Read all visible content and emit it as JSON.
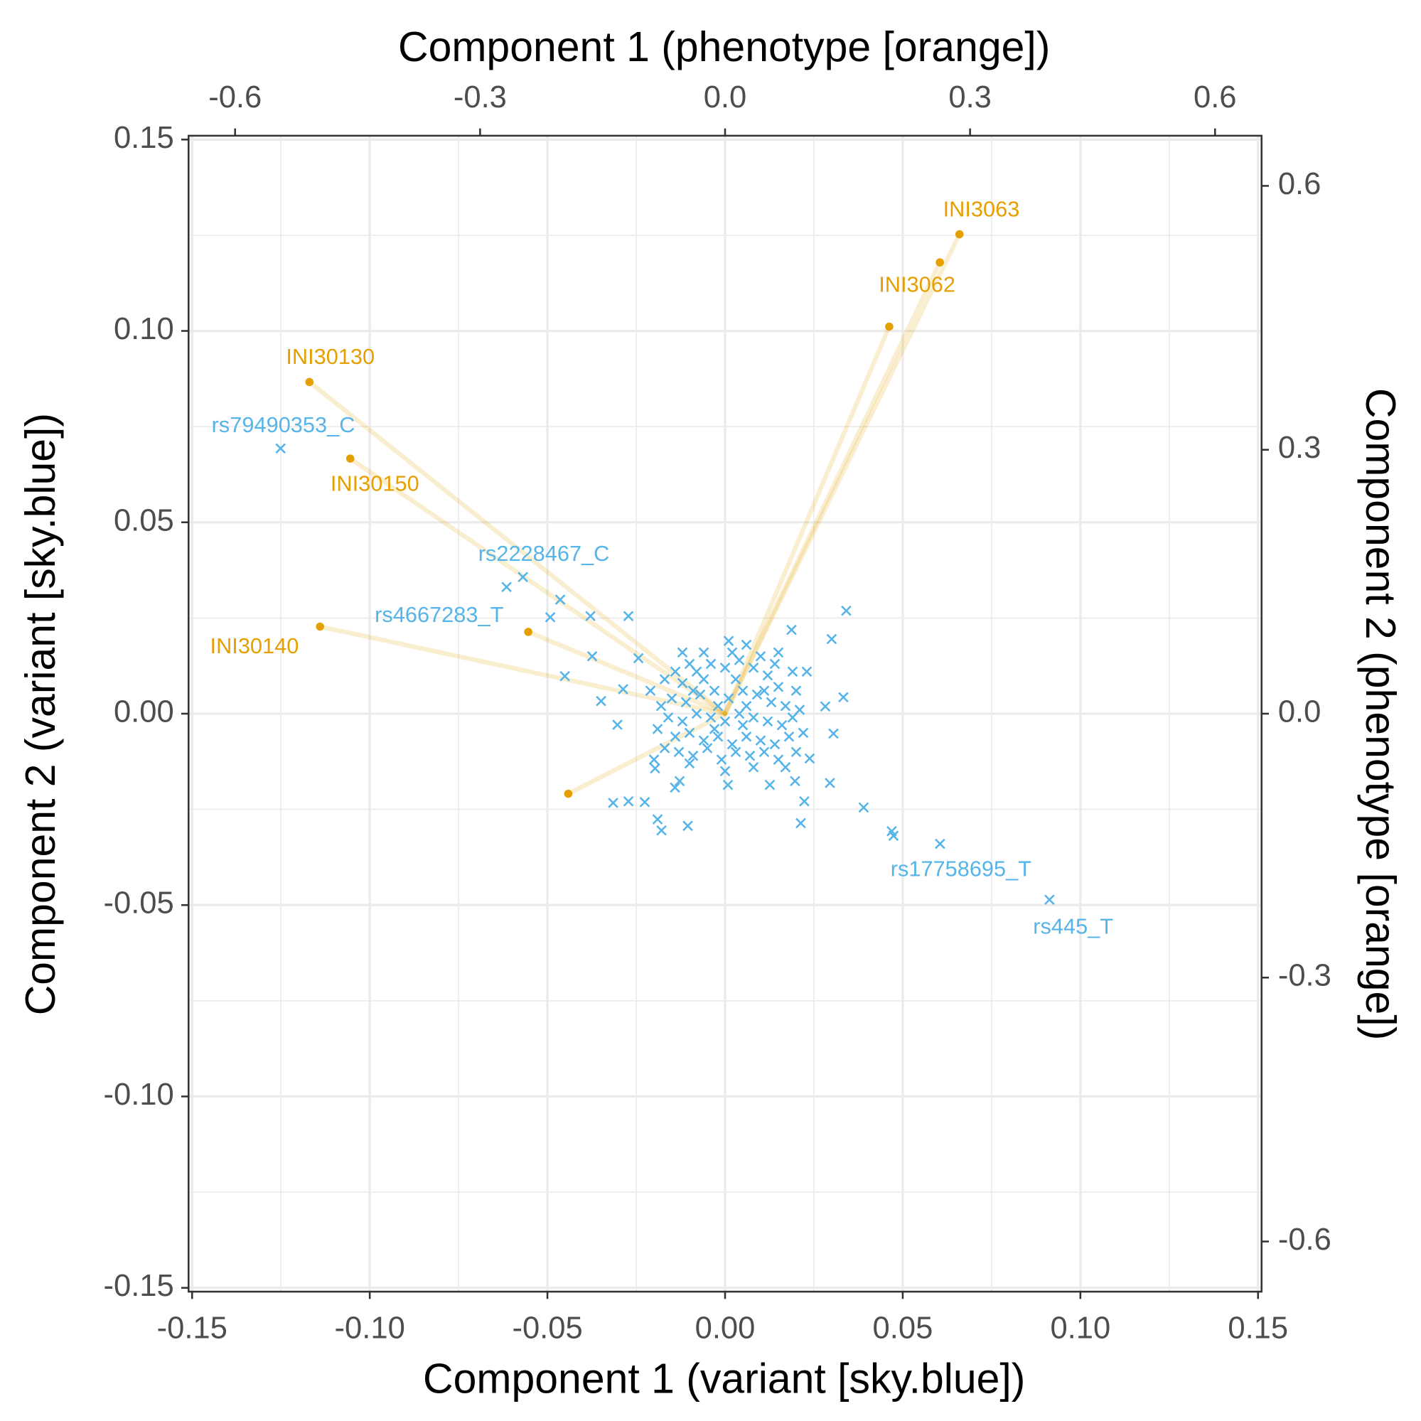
{
  "chart_data": {
    "type": "scatter",
    "xlabel": "Component 1 (variant [sky.blue])",
    "ylabel": "Component 2 (variant [sky.blue])",
    "x2label": "Component 1 (phenotype [orange])",
    "y2label": "Component 2 (phenotype [orange])",
    "xlim": [
      -0.151,
      0.151
    ],
    "ylim": [
      -0.151,
      0.151
    ],
    "xticks": [
      -0.15,
      {
        "value": -0.1,
        "label": "-0.10"
      },
      -0.05,
      {
        "value": 0,
        "label": "0.00"
      },
      0.05,
      {
        "value": 0.1,
        "label": "0.10"
      },
      0.15
    ],
    "yticks": [
      -0.15,
      {
        "value": -0.1,
        "label": "-0.10"
      },
      -0.05,
      {
        "value": 0,
        "label": "0.00"
      },
      0.05,
      {
        "value": 0.1,
        "label": "0.10"
      },
      0.15
    ],
    "x2lim": [
      -0.657,
      0.657
    ],
    "y2lim": [
      -0.657,
      0.657
    ],
    "x2ticks": [
      -0.6,
      -0.3,
      {
        "value": 0,
        "label": "0.0"
      },
      0.3,
      0.6
    ],
    "y2ticks": [
      -0.6,
      -0.3,
      {
        "value": 0,
        "label": "0.0"
      },
      0.3,
      0.6
    ],
    "grid": true,
    "series": [
      {
        "color": "#56B4E9",
        "marker": "x",
        "x": [
          -0.1251,
          -0.0569,
          -0.0492,
          0.0605,
          0.0913
        ],
        "y": [
          0.0693,
          0.0357,
          0.0252,
          -0.034,
          -0.0486
        ],
        "labels": [
          "rs79490353_C",
          "rs2228467_C",
          "rs4667283_T",
          "rs17758695_T",
          "rs445_T"
        ]
      },
      {
        "color": "#56B4E9",
        "marker": "x",
        "x": [
          -0.0615,
          -0.0464,
          -0.0379,
          -0.0272,
          -0.0374,
          -0.0451,
          -0.0349,
          -0.0303,
          -0.0315,
          -0.0272,
          -0.0226,
          -0.019,
          -0.0179,
          -0.0105,
          0.0187,
          0.03,
          0.0341,
          0.0333,
          0.0282,
          0.0305,
          0.039,
          0.0469,
          0.0474,
          0.0213,
          0.0223,
          0.0197,
          0.0126,
          0.0295,
          0.0238,
          0.0008,
          -0.0128,
          -0.0197,
          -0.0141,
          -0.0244,
          -0.0287,
          -0.012,
          -0.008,
          -0.004,
          0.0,
          0.004,
          0.008,
          0.012,
          0.015,
          -0.015,
          -0.011,
          -0.007,
          -0.003,
          0.001,
          0.005,
          0.009,
          0.013,
          0.017,
          -0.016,
          -0.012,
          -0.008,
          -0.004,
          0.0,
          0.004,
          0.008,
          0.012,
          0.016,
          0.019,
          -0.014,
          -0.01,
          -0.006,
          -0.002,
          0.002,
          0.006,
          0.01,
          0.014,
          0.018,
          -0.013,
          -0.009,
          -0.005,
          -0.001,
          0.003,
          0.007,
          0.011,
          0.015,
          -0.01,
          -0.006,
          0.002,
          0.006,
          0.01,
          0.014,
          -0.017,
          -0.018,
          -0.019,
          -0.017,
          0.02,
          0.021,
          0.022,
          0.02,
          -0.006,
          0.003,
          0.011,
          -0.002,
          0.006,
          -0.01,
          0.0,
          0.008,
          0.017,
          -0.014,
          0.019,
          -0.021,
          -0.02,
          0.023,
          -0.003,
          0.005,
          -0.009,
          0.015,
          -0.012,
          0.001
        ],
        "y": [
          0.0331,
          0.0298,
          0.0255,
          0.0255,
          0.015,
          0.0098,
          0.0033,
          -0.0029,
          -0.0233,
          -0.0229,
          -0.0231,
          -0.0276,
          -0.0305,
          -0.0293,
          0.0219,
          0.0195,
          0.0269,
          0.0043,
          0.0019,
          -0.0052,
          -0.0245,
          -0.0307,
          -0.0319,
          -0.0286,
          -0.0229,
          -0.0176,
          -0.0186,
          -0.0181,
          -0.0117,
          -0.0186,
          -0.0176,
          -0.0143,
          -0.0193,
          0.0145,
          0.0064,
          0.008,
          0.011,
          0.013,
          0.012,
          0.014,
          0.012,
          0.01,
          0.007,
          0.004,
          0.003,
          0.005,
          0.006,
          0.004,
          0.006,
          0.005,
          0.003,
          0.002,
          -0.001,
          -0.002,
          0.0,
          -0.001,
          -0.002,
          0.0,
          -0.001,
          -0.002,
          -0.003,
          -0.001,
          -0.006,
          -0.005,
          -0.007,
          -0.006,
          -0.008,
          -0.006,
          -0.007,
          -0.008,
          -0.006,
          -0.01,
          -0.011,
          -0.009,
          -0.012,
          -0.01,
          -0.011,
          -0.01,
          -0.012,
          0.013,
          0.016,
          0.016,
          0.018,
          0.015,
          0.013,
          0.009,
          0.002,
          -0.004,
          -0.009,
          0.006,
          0.001,
          -0.005,
          -0.01,
          0.009,
          0.009,
          0.006,
          0.002,
          0.002,
          -0.013,
          -0.015,
          -0.014,
          -0.014,
          0.011,
          0.011,
          0.006,
          -0.012,
          0.011,
          -0.004,
          -0.003,
          0.006,
          0.016,
          0.016,
          0.019
        ]
      },
      {
        "color": "#E69F00",
        "marker": "dot",
        "axis": "y2",
        "x_axis": "x2",
        "x": [
          0.287,
          0.263,
          -0.509,
          -0.459,
          -0.496
        ],
        "y": [
          0.545,
          0.513,
          0.377,
          0.29,
          0.099
        ],
        "labels": [
          "INI3063",
          "INI3062",
          "INI30130",
          "INI30150",
          "INI30140"
        ]
      },
      {
        "color": "#E69F00",
        "marker": "dot",
        "axis": "y2",
        "x_axis": "x2",
        "x": [
          0.201,
          -0.241,
          -0.192
        ],
        "y": [
          0.44,
          0.093,
          -0.091
        ]
      }
    ]
  }
}
